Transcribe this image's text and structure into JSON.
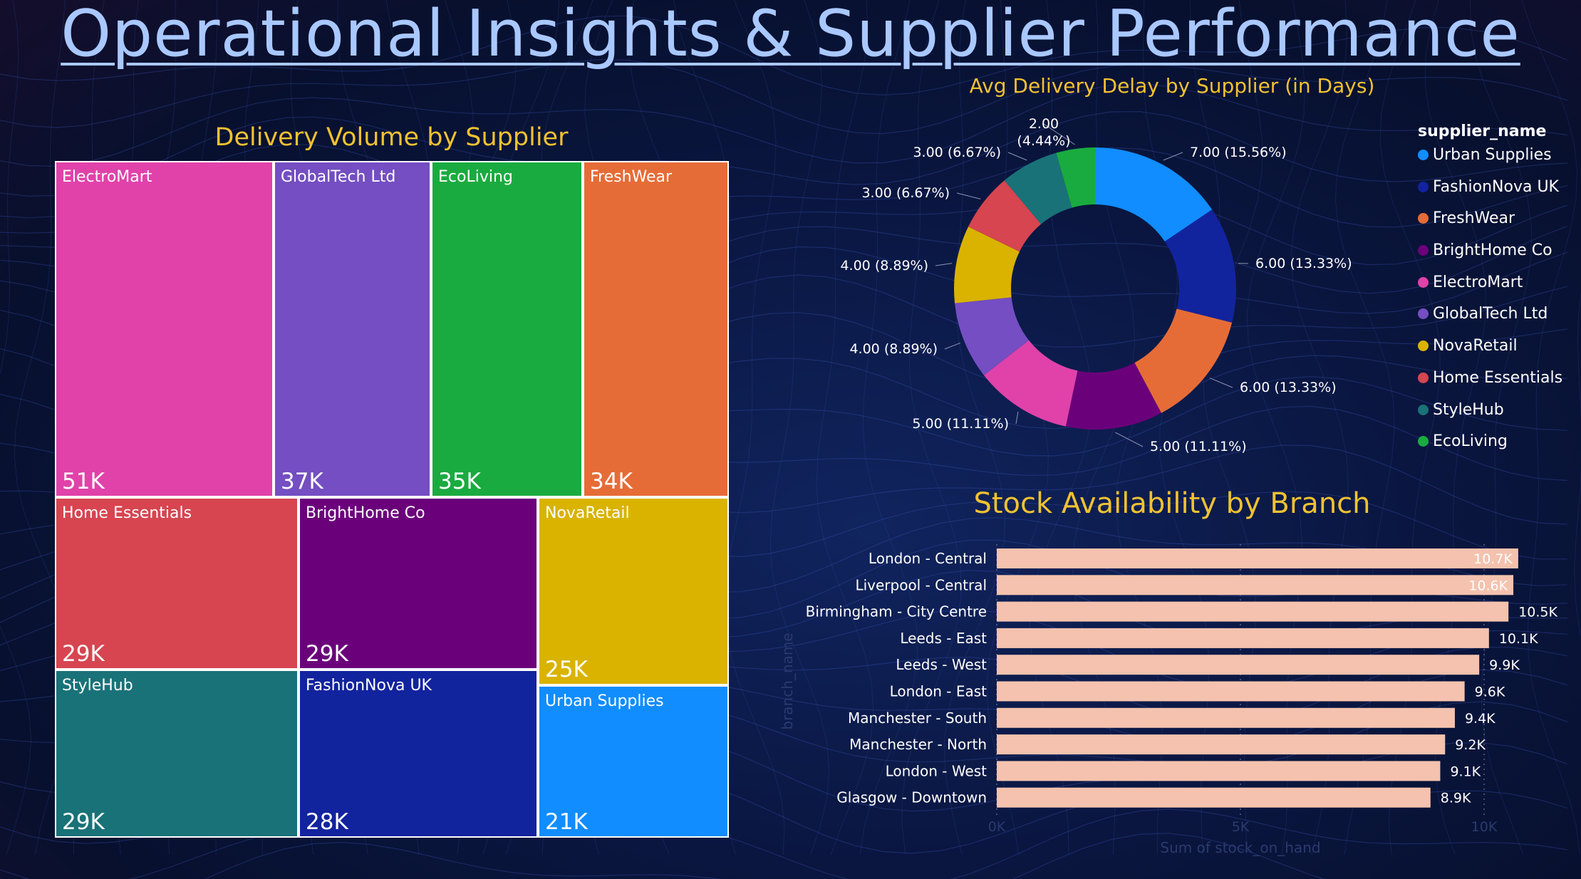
{
  "page_title": "Operational Insights & Supplier Performance",
  "colors": {
    "title": "#a9c8ff",
    "chart_title": "#f2c230",
    "bar": "#f4c2ae",
    "bar_label_inside": "#ffffff",
    "bar_label_outside": "#ffffff"
  },
  "treemap": {
    "title": "Delivery Volume by Supplier",
    "tiles": [
      {
        "name": "ElectroMart",
        "value": "51K",
        "color": "#e042aa"
      },
      {
        "name": "GlobalTech Ltd",
        "value": "37K",
        "color": "#744ec2"
      },
      {
        "name": "EcoLiving",
        "value": "35K",
        "color": "#1aab40"
      },
      {
        "name": "FreshWear",
        "value": "34K",
        "color": "#e66c37"
      },
      {
        "name": "Home Essentials",
        "value": "29K",
        "color": "#d64550"
      },
      {
        "name": "BrightHome Co",
        "value": "29K",
        "color": "#6b007b"
      },
      {
        "name": "NovaRetail",
        "value": "25K",
        "color": "#d9b300"
      },
      {
        "name": "StyleHub",
        "value": "29K",
        "color": "#197278"
      },
      {
        "name": "FashionNova UK",
        "value": "28K",
        "color": "#12239e"
      },
      {
        "name": "Urban Supplies",
        "value": "21K",
        "color": "#118dff"
      }
    ]
  },
  "donut": {
    "title": "Avg Delivery Delay by Supplier (in Days)",
    "legend_title": "supplier_name",
    "slices": [
      {
        "name": "Urban Supplies",
        "value": 7.0,
        "label": "7.00 (15.56%)",
        "color": "#118dff"
      },
      {
        "name": "FashionNova UK",
        "value": 6.0,
        "label": "6.00 (13.33%)",
        "color": "#12239e"
      },
      {
        "name": "FreshWear",
        "value": 6.0,
        "label": "6.00 (13.33%)",
        "color": "#e66c37"
      },
      {
        "name": "BrightHome Co",
        "value": 5.0,
        "label": "5.00 (11.11%)",
        "color": "#6b007b"
      },
      {
        "name": "ElectroMart",
        "value": 5.0,
        "label": "5.00 (11.11%)",
        "color": "#e042aa"
      },
      {
        "name": "GlobalTech Ltd",
        "value": 4.0,
        "label": "4.00 (8.89%)",
        "color": "#744ec2"
      },
      {
        "name": "NovaRetail",
        "value": 4.0,
        "label": "4.00 (8.89%)",
        "color": "#d9b300"
      },
      {
        "name": "Home Essentials",
        "value": 3.0,
        "label": "3.00 (6.67%)",
        "color": "#d64550"
      },
      {
        "name": "StyleHub",
        "value": 3.0,
        "label": "3.00 (6.67%)",
        "color": "#197278"
      },
      {
        "name": "EcoLiving",
        "value": 2.0,
        "label": "2.00\n(4.44%)",
        "color": "#1aab40"
      }
    ]
  },
  "bar": {
    "title": "Stock Availability by Branch",
    "ylabel": "branch_name",
    "xlabel": "Sum of stock_on_hand",
    "xticks": [
      "0K",
      "5K",
      "10K"
    ]
  },
  "chart_data": [
    {
      "type": "treemap",
      "title": "Delivery Volume by Supplier",
      "categories": [
        "ElectroMart",
        "GlobalTech Ltd",
        "EcoLiving",
        "FreshWear",
        "Home Essentials",
        "BrightHome Co",
        "NovaRetail",
        "StyleHub",
        "FashionNova UK",
        "Urban Supplies"
      ],
      "values": [
        51000,
        37000,
        35000,
        34000,
        29000,
        29000,
        25000,
        29000,
        28000,
        21000
      ]
    },
    {
      "type": "pie",
      "title": "Avg Delivery Delay by Supplier (in Days)",
      "categories": [
        "Urban Supplies",
        "FashionNova UK",
        "FreshWear",
        "BrightHome Co",
        "ElectroMart",
        "GlobalTech Ltd",
        "NovaRetail",
        "Home Essentials",
        "StyleHub",
        "EcoLiving"
      ],
      "values": [
        7,
        6,
        6,
        5,
        5,
        4,
        4,
        3,
        3,
        2
      ],
      "legend": "right"
    },
    {
      "type": "bar",
      "orientation": "horizontal",
      "title": "Stock Availability by Branch",
      "categories": [
        "London - Central",
        "Liverpool - Central",
        "Birmingham - City Centre",
        "Leeds - East",
        "Leeds - West",
        "London - East",
        "Manchester - South",
        "Manchester - North",
        "London - West",
        "Glasgow - Downtown"
      ],
      "values": [
        10700,
        10600,
        10500,
        10100,
        9900,
        9600,
        9400,
        9200,
        9100,
        8900
      ],
      "labels": [
        "10.7K",
        "10.6K",
        "10.5K",
        "10.1K",
        "9.9K",
        "9.6K",
        "9.4K",
        "9.2K",
        "9.1K",
        "8.9K"
      ],
      "xlabel": "Sum of stock_on_hand",
      "ylabel": "branch_name",
      "xlim": [
        0,
        10700
      ],
      "grid": "vertical dotted"
    }
  ]
}
